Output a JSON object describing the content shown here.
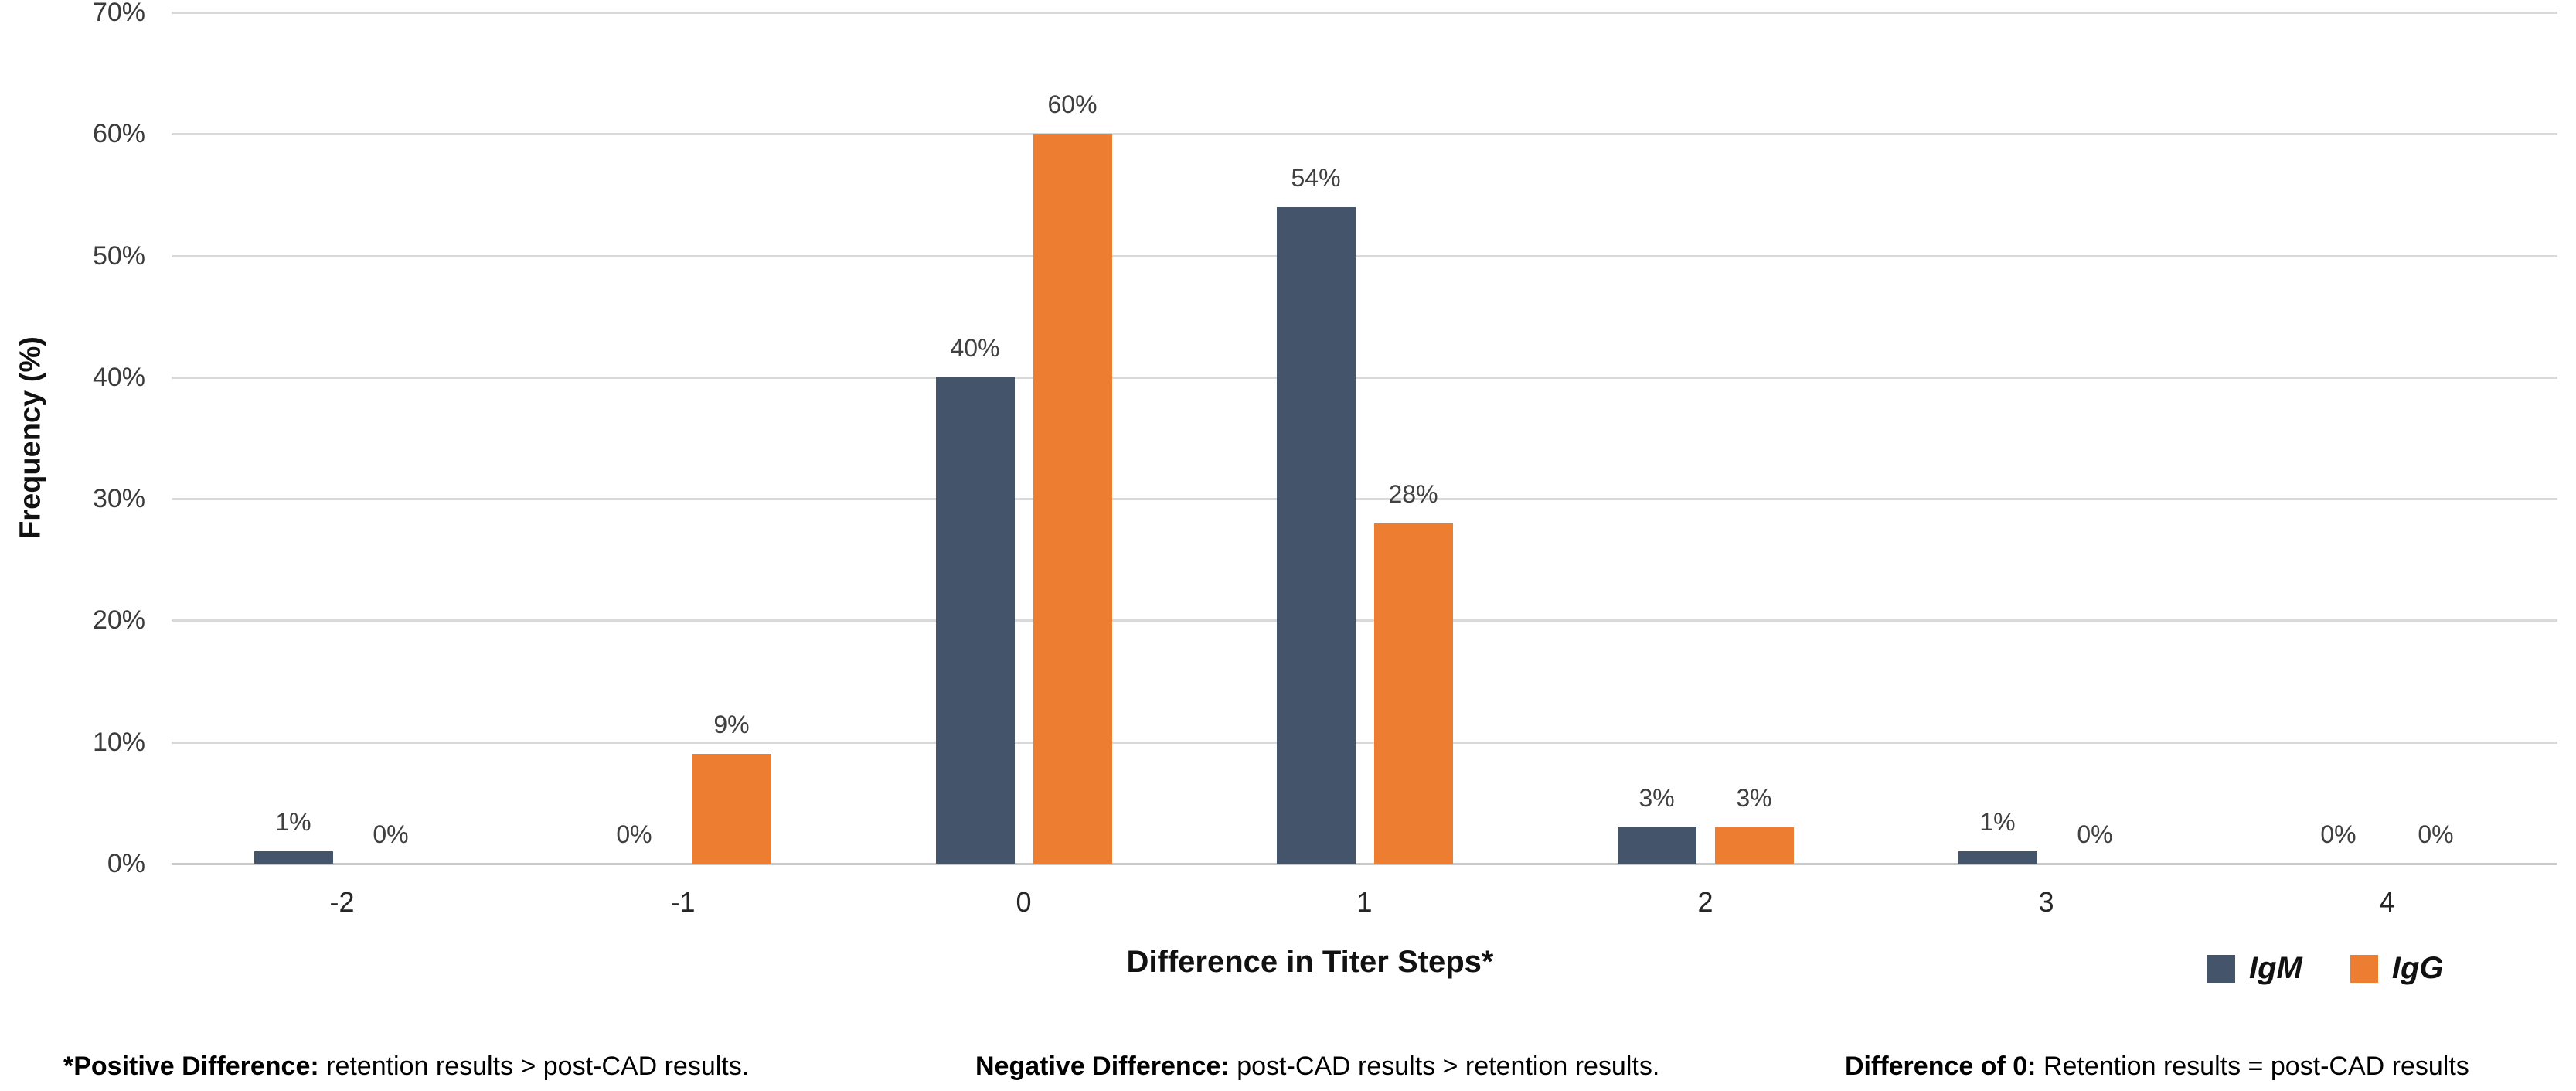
{
  "chart_data": {
    "type": "bar",
    "title": "",
    "xlabel": "Difference in Titer Steps*",
    "ylabel": "Frequency (%)",
    "categories": [
      "-2",
      "-1",
      "0",
      "1",
      "2",
      "3",
      "4"
    ],
    "series": [
      {
        "name": "IgM",
        "color": "#44546A",
        "values": [
          1,
          0,
          40,
          54,
          3,
          1,
          0
        ],
        "labels": [
          "1%",
          "0%",
          "40%",
          "54%",
          "3%",
          "1%",
          "0%"
        ]
      },
      {
        "name": "IgG",
        "color": "#ED7D31",
        "values": [
          0,
          9,
          60,
          28,
          3,
          0,
          0
        ],
        "labels": [
          "0%",
          "9%",
          "60%",
          "28%",
          "3%",
          "0%",
          "0%"
        ]
      }
    ],
    "ylim": [
      0,
      70
    ],
    "yticks": [
      "0%",
      "10%",
      "20%",
      "30%",
      "40%",
      "50%",
      "60%",
      "70%"
    ],
    "grid": true,
    "legend_position": "bottom-right",
    "gridline_color": "#D9D9D9",
    "data_label_color": "#404040"
  },
  "footnotes": [
    {
      "label": "*Positive Difference:",
      "text": " retention results > post-CAD results."
    },
    {
      "label": "Negative Difference:",
      "text": " post-CAD results > retention results."
    },
    {
      "label": "Difference of 0:",
      "text": " Retention results = post-CAD results"
    }
  ]
}
